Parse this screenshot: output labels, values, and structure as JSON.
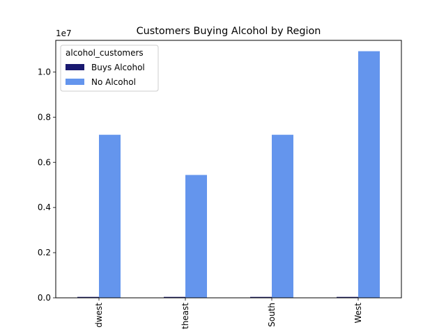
{
  "chart_data": {
    "type": "bar",
    "title": "Customers Buying Alcohol by Region",
    "xlabel": "",
    "ylabel": "",
    "categories": [
      "Midwest",
      "Northeast",
      "South",
      "West"
    ],
    "visible_tick_labels": [
      "dwest",
      "theast",
      "South",
      "West"
    ],
    "y_offset_label": "1e7",
    "y_scale": 10000000,
    "ylim": [
      0,
      11400000
    ],
    "yticks": [
      0.0,
      0.2,
      0.4,
      0.6,
      0.8,
      1.0
    ],
    "ytick_labels": [
      "0.0",
      "0.2",
      "0.4",
      "0.6",
      "0.8",
      "1.0"
    ],
    "legend": {
      "title": "alcohol_customers",
      "placement": "upper-left"
    },
    "grid": false,
    "series": [
      {
        "name": "Buys Alcohol",
        "color": "#191970",
        "values": [
          40000,
          40000,
          40000,
          40000
        ]
      },
      {
        "name": "No Alcohol",
        "color": "#6495ED",
        "values": [
          7220000,
          5440000,
          7220000,
          10920000
        ]
      }
    ]
  }
}
